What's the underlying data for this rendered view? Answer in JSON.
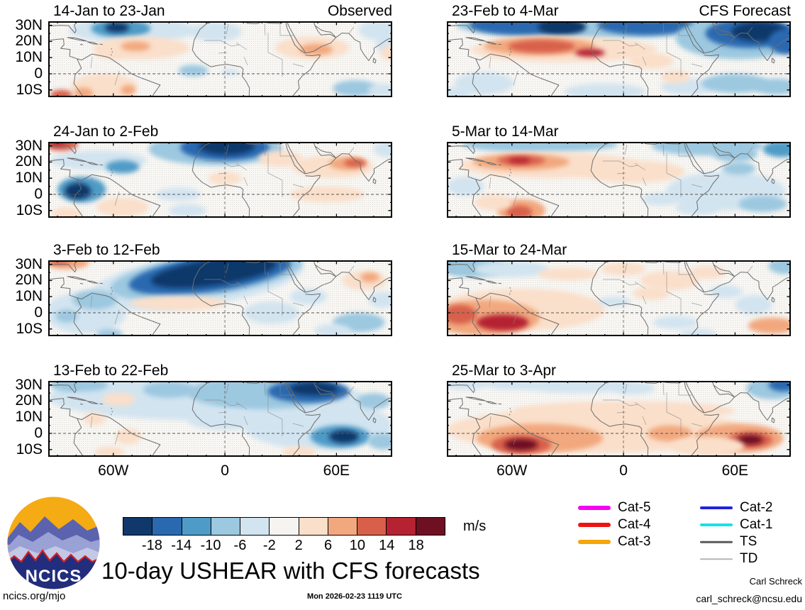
{
  "title_text": "10-day USHEAR with CFS forecasts",
  "axes": {
    "y_labels": [
      [
        "30N",
        30
      ],
      [
        "20N",
        20
      ],
      [
        "10N",
        10
      ],
      [
        "0",
        0
      ],
      [
        "10S",
        -10
      ]
    ],
    "x_labels": [
      [
        "60W",
        -60
      ],
      [
        "0",
        0
      ],
      [
        "60E",
        60
      ]
    ]
  },
  "colorbar": {
    "levels": [
      -18,
      -14,
      -10,
      -6,
      -2,
      2,
      6,
      10,
      14,
      18
    ],
    "labels": [
      "-18",
      "-14",
      "-10",
      "-6",
      "-2",
      "2",
      "6",
      "10",
      "14",
      "18"
    ],
    "colors": [
      "#10386b",
      "#2a69b0",
      "#4f9bc7",
      "#9cc8e0",
      "#d2e4f0",
      "#f5f4f1",
      "#fadfca",
      "#f2a87e",
      "#d8604b",
      "#b52231",
      "#6e1021"
    ],
    "units": "m/s"
  },
  "legend": {
    "columns": [
      [
        {
          "label": "Cat-5",
          "color": "#f400f4",
          "h": 6
        },
        {
          "label": "Cat-4",
          "color": "#ee1212",
          "h": 6
        },
        {
          "label": "Cat-3",
          "color": "#f6a50a",
          "h": 6
        }
      ],
      [
        {
          "label": "Cat-2",
          "color": "#2222dd",
          "h": 4
        },
        {
          "label": "Cat-1",
          "color": "#18e0ee",
          "h": 4
        },
        {
          "label": "TS",
          "color": "#5a5a5a",
          "h": 2.5
        },
        {
          "label": "TD",
          "color": "#b5b5b5",
          "h": 1.5
        }
      ]
    ]
  },
  "logo": {
    "text": "NCICS"
  },
  "footer": {
    "site": "ncics.org/mjo",
    "timestamp": "Mon 2026-02-23 1119 UTC",
    "credit_name": "Carl Schreck",
    "credit_email": "carl_schreck@ncsu.edu"
  },
  "chart_data": {
    "type": "heatmap",
    "subtype": "filled-contour anomaly maps, u-wind shear anomalies",
    "units": "m/s",
    "x_domain_deg": [
      -95,
      90
    ],
    "y_domain_deg": [
      -14.5,
      32.5
    ],
    "blob_format": "[lon_deg, lat_deg, rx_deg, ry_deg, value_m_per_s, rot_deg?]",
    "panels": [
      {
        "id": "L1",
        "title": "14-Jan to 23-Jan",
        "tag": "Observed",
        "col": "left",
        "row": 0,
        "blobs": [
          [
            -50,
            27,
            34,
            8,
            -4
          ],
          [
            -56,
            28,
            16,
            5.5,
            -12
          ],
          [
            -58,
            28.5,
            6.5,
            3,
            -20
          ],
          [
            -5,
            26,
            14,
            6,
            -4
          ],
          [
            82,
            27,
            10,
            6,
            -4
          ],
          [
            88,
            19,
            7,
            7,
            -4
          ],
          [
            -17,
            2,
            8,
            3.5,
            -8
          ],
          [
            3,
            1,
            5,
            2,
            -4
          ],
          [
            70,
            -9,
            12,
            5,
            -8
          ],
          [
            85,
            -10,
            8,
            4,
            -4
          ],
          [
            -45,
            16,
            26,
            7,
            4
          ],
          [
            -60,
            13,
            10,
            4,
            4
          ],
          [
            -48,
            17,
            8,
            3,
            8
          ],
          [
            47,
            16,
            20,
            7,
            4
          ],
          [
            49,
            15,
            9,
            3.5,
            8
          ],
          [
            -65,
            -8,
            18,
            8,
            4
          ],
          [
            -76,
            -12,
            5,
            3.5,
            8
          ],
          [
            -52,
            -10,
            4,
            3,
            8
          ],
          [
            -88,
            -13,
            6,
            3,
            12
          ],
          [
            90,
            13,
            6,
            5,
            4
          ]
        ]
      },
      {
        "id": "L2",
        "title": "24-Jan to 2-Feb",
        "tag": "",
        "col": "left",
        "row": 1,
        "blobs": [
          [
            -68,
            21,
            26,
            6,
            -4
          ],
          [
            -88,
            31,
            9,
            4,
            12
          ],
          [
            -90,
            32,
            4.5,
            2,
            18
          ],
          [
            -5,
            28,
            36,
            10,
            -8
          ],
          [
            0,
            29,
            24,
            8,
            -14
          ],
          [
            1,
            29.5,
            15,
            5,
            -20
          ],
          [
            -55,
            17,
            9,
            4,
            -12
          ],
          [
            -77,
            3,
            13,
            8,
            -12
          ],
          [
            -79,
            2,
            7,
            5,
            -20
          ],
          [
            -25,
            0,
            12,
            4,
            -4
          ],
          [
            -20,
            -10,
            10,
            4,
            -4
          ],
          [
            88,
            28,
            8,
            5,
            -4
          ],
          [
            58,
            17,
            22,
            7,
            4
          ],
          [
            66,
            19,
            10,
            4,
            8
          ],
          [
            70,
            19.5,
            6,
            2.5,
            14
          ],
          [
            30,
            22,
            12,
            5,
            4
          ],
          [
            0,
            10,
            9,
            4,
            4
          ],
          [
            -55,
            -8,
            14,
            6,
            4
          ],
          [
            55,
            0,
            20,
            5,
            4
          ],
          [
            -85,
            -12,
            8,
            4,
            4
          ]
        ]
      },
      {
        "id": "L3",
        "title": "3-Feb to 12-Feb",
        "tag": "",
        "col": "left",
        "row": 2,
        "blobs": [
          [
            -15,
            20,
            58,
            16,
            -4,
            -8
          ],
          [
            -10,
            23,
            52,
            13,
            -8,
            -8
          ],
          [
            -8,
            24,
            44,
            11,
            -14,
            -8
          ],
          [
            -6,
            25,
            34,
            8,
            -20,
            -8
          ],
          [
            -85,
            31,
            12,
            4,
            8
          ],
          [
            -89,
            32,
            6,
            2,
            14
          ],
          [
            -75,
            0,
            22,
            13,
            -4
          ],
          [
            -85,
            -2,
            6,
            4,
            -8
          ],
          [
            -62,
            -13,
            7,
            3,
            -8
          ],
          [
            -70,
            8,
            12,
            6,
            -8
          ],
          [
            -25,
            6,
            26,
            4.5,
            4
          ],
          [
            25,
            0,
            15,
            7,
            -4
          ],
          [
            45,
            10,
            10,
            5,
            -4
          ],
          [
            75,
            20,
            12,
            6,
            4
          ],
          [
            78,
            22,
            5,
            3,
            8
          ],
          [
            85,
            8,
            8,
            5,
            -4
          ],
          [
            72,
            -6,
            14,
            6,
            -8
          ],
          [
            58,
            -11,
            10,
            4,
            -4
          ]
        ]
      },
      {
        "id": "L4",
        "title": "13-Feb to 22-Feb",
        "tag": "",
        "col": "left",
        "row": 3,
        "blobs": [
          [
            -10,
            22,
            85,
            14,
            -4
          ],
          [
            50,
            5,
            40,
            15,
            -4
          ],
          [
            20,
            25,
            40,
            10,
            -8
          ],
          [
            45,
            26,
            22,
            7,
            -14
          ],
          [
            48,
            27.5,
            13,
            4,
            -20
          ],
          [
            62,
            -2,
            16,
            7,
            -12
          ],
          [
            64,
            -2,
            8,
            4,
            -18
          ],
          [
            80,
            20,
            9,
            5,
            -8
          ],
          [
            -85,
            30,
            9,
            4,
            -8
          ],
          [
            -75,
            30,
            12,
            4,
            -8
          ],
          [
            -30,
            27,
            14,
            5,
            -8
          ],
          [
            -57,
            21,
            9,
            4,
            4
          ],
          [
            -70,
            9,
            6,
            4,
            4
          ],
          [
            -52,
            -2,
            7,
            5,
            4
          ],
          [
            -62,
            -12,
            8,
            4,
            4
          ],
          [
            40,
            -12,
            9,
            4,
            4
          ],
          [
            0,
            8,
            20,
            6,
            -4
          ],
          [
            85,
            -5,
            8,
            5,
            -8
          ]
        ]
      },
      {
        "id": "R1",
        "title": "23-Feb to 4-Mar",
        "tag": "CFS Forecast",
        "col": "right",
        "row": 0,
        "blobs": [
          [
            -15,
            30,
            75,
            8,
            -8
          ],
          [
            -55,
            30,
            28,
            6,
            -14
          ],
          [
            -33,
            29,
            13,
            5,
            -20
          ],
          [
            12,
            30,
            26,
            6,
            -14
          ],
          [
            62,
            22,
            34,
            13,
            -8
          ],
          [
            68,
            25,
            24,
            9,
            -14
          ],
          [
            73,
            26,
            15,
            6,
            -20
          ],
          [
            88,
            20,
            10,
            8,
            -14
          ],
          [
            -32,
            15,
            50,
            8,
            4
          ],
          [
            -45,
            17,
            30,
            5.5,
            8
          ],
          [
            -44,
            17,
            18,
            4,
            12
          ],
          [
            -18,
            13,
            8,
            2.5,
            16
          ],
          [
            15,
            8,
            12,
            5,
            4
          ],
          [
            -75,
            -6,
            16,
            7,
            -4
          ],
          [
            -10,
            -11,
            22,
            5,
            -4
          ],
          [
            35,
            -8,
            15,
            5,
            -4
          ],
          [
            60,
            -6,
            18,
            6,
            -8
          ],
          [
            82,
            -8,
            12,
            5,
            -8
          ],
          [
            -90,
            -12,
            8,
            4,
            -4
          ],
          [
            28,
            -2,
            8,
            4,
            4
          ]
        ]
      },
      {
        "id": "R2",
        "title": "5-Mar to 14-Mar",
        "tag": "",
        "col": "right",
        "row": 1,
        "blobs": [
          [
            -45,
            31,
            42,
            5,
            -8
          ],
          [
            45,
            30,
            30,
            6,
            -8
          ],
          [
            85,
            28,
            10,
            5,
            -12
          ],
          [
            60,
            25,
            12,
            5,
            -8
          ],
          [
            -40,
            18,
            48,
            8,
            4
          ],
          [
            -55,
            20,
            26,
            5,
            8
          ],
          [
            -55,
            21,
            13,
            3,
            12
          ],
          [
            -56,
            21,
            6,
            1.8,
            16
          ],
          [
            5,
            14,
            28,
            7,
            4
          ],
          [
            -55,
            -10,
            13,
            7,
            8
          ],
          [
            -56,
            -11,
            7,
            4,
            14
          ],
          [
            -70,
            -5,
            10,
            5,
            4
          ],
          [
            55,
            2,
            32,
            12,
            -4
          ],
          [
            62,
            16,
            9,
            4,
            -8
          ],
          [
            75,
            -6,
            13,
            5,
            -8
          ],
          [
            40,
            -8,
            12,
            5,
            -4
          ],
          [
            20,
            -3,
            10,
            4,
            -4
          ],
          [
            -85,
            5,
            10,
            6,
            -4
          ]
        ]
      },
      {
        "id": "R3",
        "title": "15-Mar to 24-Mar",
        "tag": "",
        "col": "right",
        "row": 2,
        "blobs": [
          [
            -88,
            30,
            11,
            5,
            -12
          ],
          [
            -80,
            28,
            18,
            6,
            -8
          ],
          [
            -60,
            27,
            20,
            5,
            -4
          ],
          [
            -55,
            2,
            45,
            13,
            4
          ],
          [
            -75,
            -3,
            30,
            11,
            8
          ],
          [
            -88,
            -1,
            9,
            6,
            14
          ],
          [
            -65,
            -6,
            14,
            5,
            16
          ],
          [
            -30,
            24,
            16,
            4,
            4
          ],
          [
            0,
            27,
            12,
            4,
            4
          ],
          [
            25,
            20,
            16,
            6,
            4
          ],
          [
            45,
            25,
            10,
            4,
            4
          ],
          [
            15,
            12,
            10,
            4,
            4
          ],
          [
            -5,
            7,
            9,
            3,
            -4
          ],
          [
            28,
            -6,
            12,
            4,
            -4
          ],
          [
            55,
            13,
            9,
            4,
            -4
          ],
          [
            70,
            5,
            10,
            6,
            -4
          ],
          [
            80,
            -8,
            13,
            5,
            8
          ],
          [
            87,
            29,
            9,
            5,
            -8
          ],
          [
            40,
            -13,
            10,
            3,
            -4
          ]
        ]
      },
      {
        "id": "R4",
        "title": "25-Mar to 3-Apr",
        "tag": "",
        "col": "right",
        "row": 3,
        "blobs": [
          [
            -85,
            31,
            13,
            4,
            -4
          ],
          [
            -60,
            31,
            15,
            4,
            -4
          ],
          [
            -25,
            30,
            32,
            5,
            -4
          ],
          [
            5,
            28,
            12,
            4,
            -4
          ],
          [
            80,
            28,
            14,
            7,
            -8
          ],
          [
            86,
            30,
            8,
            4,
            -14
          ],
          [
            -15,
            2,
            80,
            14,
            4
          ],
          [
            0,
            14,
            60,
            6,
            4
          ],
          [
            -45,
            -3,
            34,
            9,
            8
          ],
          [
            -55,
            -7,
            16,
            6,
            14
          ],
          [
            -55,
            -7,
            9,
            3.5,
            20
          ],
          [
            62,
            -3,
            24,
            9,
            8
          ],
          [
            68,
            -4,
            12,
            5,
            14
          ],
          [
            68,
            -4,
            7,
            3,
            20
          ],
          [
            25,
            0,
            12,
            5,
            8
          ],
          [
            45,
            -8,
            20,
            6,
            4
          ]
        ]
      }
    ]
  }
}
